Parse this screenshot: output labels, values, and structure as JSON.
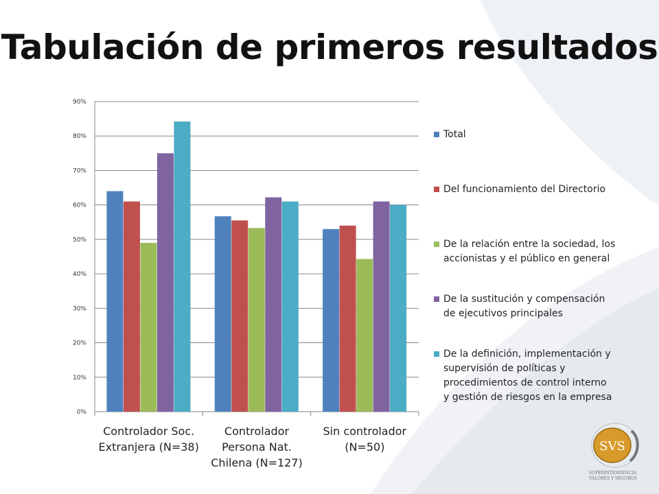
{
  "slide": {
    "title": "Tabulación de primeros resultados"
  },
  "logo": {
    "text": "SVS",
    "caption_line1": "SUPERINTENDENCIA",
    "caption_line2": "VALORES Y SEGUROS"
  },
  "colors": {
    "background_swoosh": "#e9edf2",
    "grid": "#868686"
  },
  "chart_data": {
    "type": "bar",
    "title": "",
    "xlabel": "",
    "ylabel": "",
    "ylim": [
      0,
      0.9
    ],
    "yticks": [
      0,
      0.1,
      0.2,
      0.3,
      0.4,
      0.5,
      0.6,
      0.7,
      0.8,
      0.9
    ],
    "ytick_labels": [
      "0%",
      "10%",
      "20%",
      "30%",
      "40%",
      "50%",
      "60%",
      "70%",
      "80%",
      "90%"
    ],
    "grid": true,
    "legend_position": "right",
    "categories": [
      [
        "Controlador Soc.",
        "Extranjera (N=38)"
      ],
      [
        "Controlador",
        "Persona Nat.",
        "Chilena (N=127)"
      ],
      [
        "Sin controlador",
        "(N=50)"
      ]
    ],
    "series": [
      {
        "name": [
          "Total"
        ],
        "color": "#4f81bd",
        "values": [
          0.64,
          0.567,
          0.53
        ]
      },
      {
        "name": [
          "Del funcionamiento del Directorio"
        ],
        "color": "#c0504d",
        "values": [
          0.61,
          0.555,
          0.54
        ]
      },
      {
        "name": [
          "De la relación entre la sociedad, los",
          "accionistas y el público en general"
        ],
        "color": "#9bbb59",
        "values": [
          0.49,
          0.533,
          0.443
        ]
      },
      {
        "name": [
          "De la sustitución y compensación",
          "de ejecutivos principales"
        ],
        "color": "#8064a2",
        "values": [
          0.75,
          0.622,
          0.61
        ]
      },
      {
        "name": [
          "De la definición, implementación y",
          "supervisión de políticas y",
          "procedimientos de control interno",
          "y gestión de riesgos en la empresa"
        ],
        "color": "#4bacc6",
        "values": [
          0.842,
          0.61,
          0.6
        ]
      }
    ]
  }
}
